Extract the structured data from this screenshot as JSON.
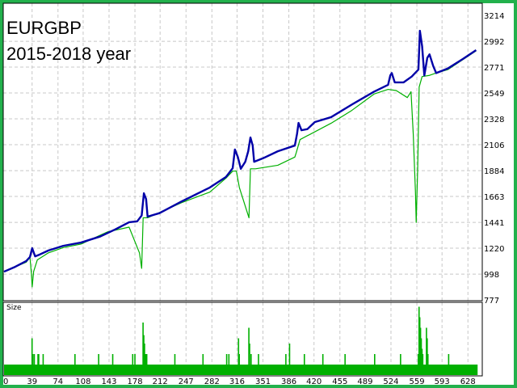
{
  "chart_data": {
    "type": "line",
    "title_lines": [
      "EURGBP",
      "2015-2018 year"
    ],
    "ylim": [
      777,
      3214
    ],
    "xlim": [
      0,
      650
    ],
    "y_ticks": [
      3214,
      2992,
      2771,
      2549,
      2328,
      2106,
      1884,
      1663,
      1441,
      1220,
      998,
      777
    ],
    "x_ticks": [
      0,
      39,
      74,
      108,
      143,
      178,
      212,
      247,
      282,
      316,
      351,
      386,
      420,
      455,
      489,
      524,
      559,
      593,
      628
    ],
    "grid": true,
    "series": [
      {
        "color": "#0000a8",
        "points": [
          [
            0,
            1019
          ],
          [
            15,
            1060
          ],
          [
            30,
            1110
          ],
          [
            35,
            1144
          ],
          [
            38,
            1220
          ],
          [
            42,
            1150
          ],
          [
            48,
            1165
          ],
          [
            60,
            1200
          ],
          [
            80,
            1240
          ],
          [
            104,
            1268
          ],
          [
            130,
            1320
          ],
          [
            150,
            1380
          ],
          [
            169,
            1442
          ],
          [
            180,
            1450
          ],
          [
            186,
            1500
          ],
          [
            189,
            1690
          ],
          [
            192,
            1640
          ],
          [
            194,
            1490
          ],
          [
            210,
            1520
          ],
          [
            240,
            1620
          ],
          [
            278,
            1739
          ],
          [
            300,
            1830
          ],
          [
            309,
            1905
          ],
          [
            312,
            2065
          ],
          [
            316,
            2000
          ],
          [
            320,
            1900
          ],
          [
            326,
            1960
          ],
          [
            330,
            2050
          ],
          [
            333,
            2168
          ],
          [
            336,
            2100
          ],
          [
            338,
            1960
          ],
          [
            350,
            1990
          ],
          [
            370,
            2050
          ],
          [
            393,
            2099
          ],
          [
            396,
            2200
          ],
          [
            398,
            2293
          ],
          [
            402,
            2230
          ],
          [
            410,
            2240
          ],
          [
            420,
            2300
          ],
          [
            442,
            2342
          ],
          [
            470,
            2450
          ],
          [
            500,
            2560
          ],
          [
            519,
            2619
          ],
          [
            522,
            2700
          ],
          [
            524,
            2720
          ],
          [
            528,
            2640
          ],
          [
            540,
            2640
          ],
          [
            551,
            2690
          ],
          [
            560,
            2750
          ],
          [
            562,
            3082
          ],
          [
            565,
            2950
          ],
          [
            568,
            2700
          ],
          [
            572,
            2850
          ],
          [
            575,
            2880
          ],
          [
            580,
            2780
          ],
          [
            584,
            2720
          ],
          [
            600,
            2760
          ],
          [
            620,
            2840
          ],
          [
            638,
            2916
          ]
        ]
      },
      {
        "color": "#00b000",
        "points": [
          [
            0,
            1019
          ],
          [
            30,
            1100
          ],
          [
            35,
            1144
          ],
          [
            37,
            1000
          ],
          [
            38,
            888
          ],
          [
            40,
            1020
          ],
          [
            45,
            1120
          ],
          [
            60,
            1180
          ],
          [
            80,
            1225
          ],
          [
            104,
            1255
          ],
          [
            140,
            1360
          ],
          [
            169,
            1400
          ],
          [
            183,
            1180
          ],
          [
            186,
            1047
          ],
          [
            188,
            1480
          ],
          [
            194,
            1480
          ],
          [
            240,
            1610
          ],
          [
            278,
            1700
          ],
          [
            300,
            1820
          ],
          [
            309,
            1880
          ],
          [
            314,
            1880
          ],
          [
            318,
            1740
          ],
          [
            331,
            1480
          ],
          [
            333,
            1900
          ],
          [
            340,
            1900
          ],
          [
            370,
            1930
          ],
          [
            393,
            2000
          ],
          [
            395,
            2040
          ],
          [
            400,
            2150
          ],
          [
            442,
            2290
          ],
          [
            470,
            2400
          ],
          [
            500,
            2540
          ],
          [
            519,
            2580
          ],
          [
            530,
            2570
          ],
          [
            545,
            2510
          ],
          [
            550,
            2560
          ],
          [
            553,
            2200
          ],
          [
            556,
            1700
          ],
          [
            557,
            1441
          ],
          [
            559,
            1900
          ],
          [
            561,
            2600
          ],
          [
            565,
            2690
          ],
          [
            575,
            2700
          ],
          [
            584,
            2720
          ],
          [
            600,
            2750
          ],
          [
            638,
            2910
          ]
        ]
      }
    ],
    "subchart": {
      "label": "Size",
      "color": "#00b000",
      "baseline": 1,
      "bars": [
        [
          37,
          3.5
        ],
        [
          38,
          2
        ],
        [
          40,
          2
        ],
        [
          45,
          2
        ],
        [
          46,
          2
        ],
        [
          52,
          2
        ],
        [
          95,
          2
        ],
        [
          127,
          2
        ],
        [
          146,
          2
        ],
        [
          173,
          2
        ],
        [
          176,
          2
        ],
        [
          187,
          5
        ],
        [
          188,
          3.8
        ],
        [
          189,
          3
        ],
        [
          190,
          2
        ],
        [
          191,
          2
        ],
        [
          192,
          2
        ],
        [
          230,
          2
        ],
        [
          268,
          2
        ],
        [
          300,
          2
        ],
        [
          303,
          2
        ],
        [
          316,
          3.5
        ],
        [
          317,
          2
        ],
        [
          330,
          4.5
        ],
        [
          331,
          3
        ],
        [
          333,
          2
        ],
        [
          343,
          2
        ],
        [
          380,
          2
        ],
        [
          385,
          3
        ],
        [
          405,
          2
        ],
        [
          430,
          2
        ],
        [
          460,
          2
        ],
        [
          500,
          2
        ],
        [
          535,
          2
        ],
        [
          559,
          2
        ],
        [
          560,
          6.5
        ],
        [
          561,
          5.5
        ],
        [
          562,
          4.5
        ],
        [
          563,
          3.5
        ],
        [
          564,
          2.5
        ],
        [
          565,
          2
        ],
        [
          570,
          4.5
        ],
        [
          571,
          3.5
        ],
        [
          572,
          2
        ],
        [
          600,
          2
        ]
      ]
    }
  }
}
